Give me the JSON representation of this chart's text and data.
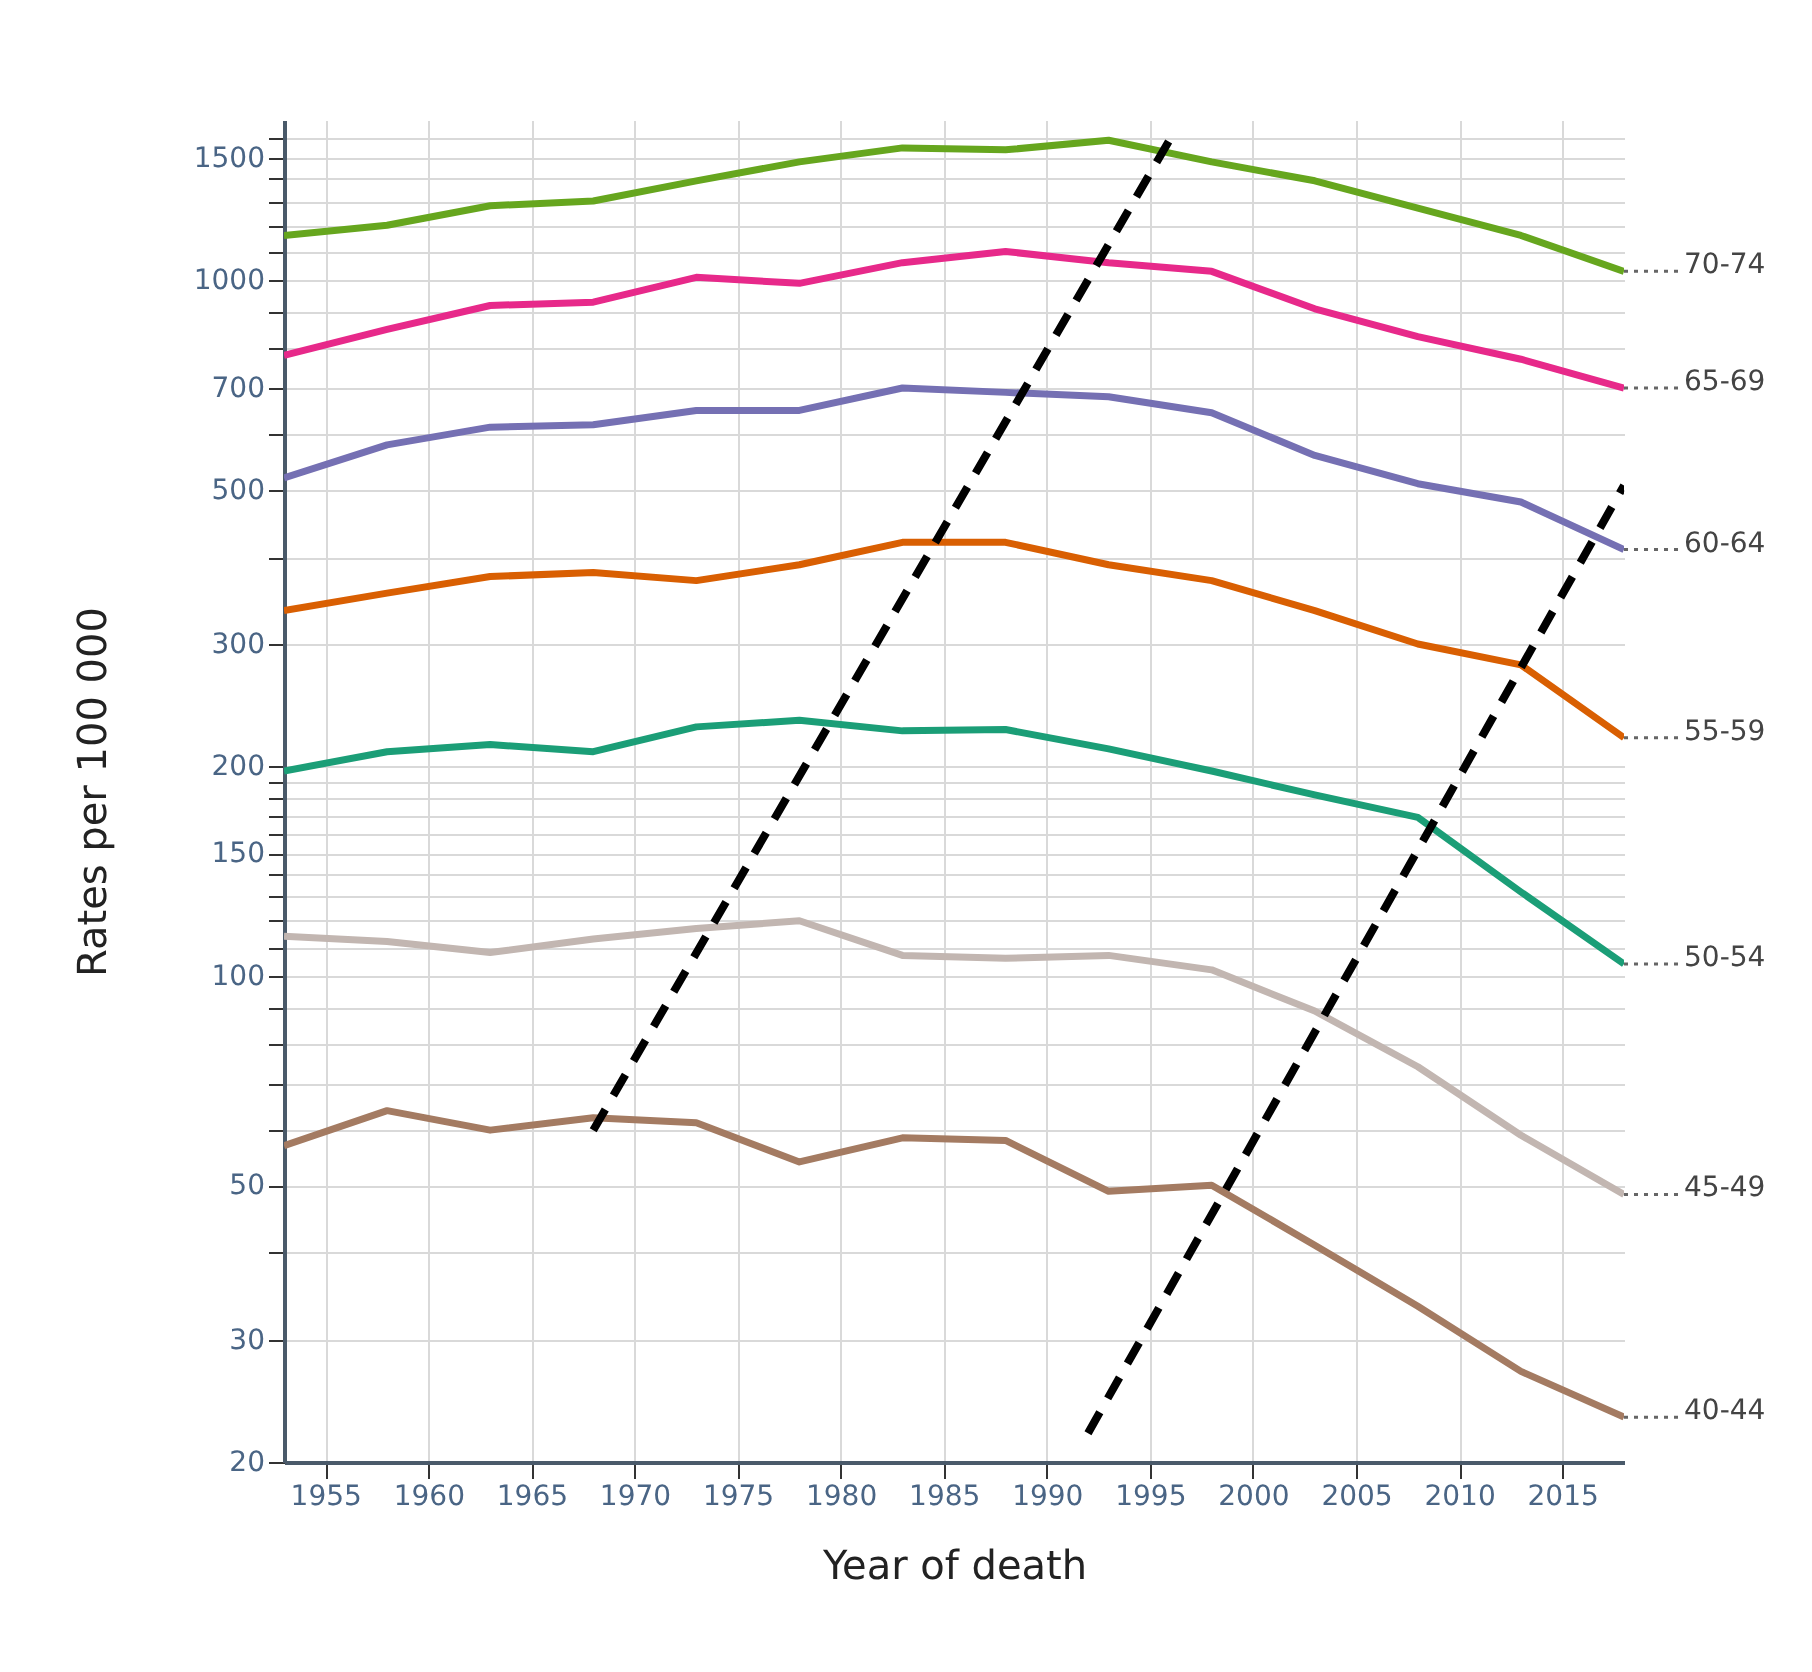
{
  "chart_data": {
    "type": "line",
    "xlabel": "Year of death",
    "ylabel": "Rates per 100 000",
    "log": "y",
    "grid": true,
    "x": [
      1953,
      1958,
      1963,
      1968,
      1973,
      1978,
      1983,
      1988,
      1993,
      1998,
      2003,
      2008,
      2013,
      2018
    ],
    "xlim": [
      1953,
      2018
    ],
    "xticks": [
      1955,
      1960,
      1965,
      1970,
      1975,
      1980,
      1985,
      1990,
      1995,
      2000,
      2005,
      2010,
      2015
    ],
    "ylim": [
      20,
      1700
    ],
    "yticks": [
      20,
      30,
      {
        "value": 40,
        "label": null
      },
      50,
      {
        "value": 60,
        "label": null
      },
      {
        "value": 70,
        "label": null
      },
      {
        "value": 80,
        "label": null
      },
      {
        "value": 90,
        "label": null
      },
      100,
      {
        "value": 110,
        "label": null
      },
      {
        "value": 120,
        "label": null
      },
      {
        "value": 130,
        "label": null
      },
      {
        "value": 140,
        "label": null
      },
      150,
      {
        "value": 160,
        "label": null
      },
      {
        "value": 170,
        "label": null
      },
      {
        "value": 180,
        "label": null
      },
      {
        "value": 190,
        "label": null
      },
      200,
      300,
      {
        "value": 400,
        "label": null
      },
      500,
      {
        "value": 600,
        "label": null
      },
      700,
      {
        "value": 800,
        "label": null
      },
      {
        "value": 900,
        "label": null
      },
      1000,
      {
        "value": 1100,
        "label": null
      },
      {
        "value": 1200,
        "label": null
      },
      {
        "value": 1300,
        "label": null
      },
      {
        "value": 1400,
        "label": null
      },
      1500,
      {
        "value": 1600,
        "label": null
      }
    ],
    "series": [
      {
        "name": "70-74",
        "color": "#66a61e",
        "values": [
          1160,
          1200,
          1280,
          1300,
          1390,
          1480,
          1550,
          1540,
          1590,
          1480,
          1390,
          1270,
          1160,
          1030
        ]
      },
      {
        "name": "65-69",
        "color": "#e7298a",
        "values": [
          780,
          850,
          920,
          930,
          1010,
          990,
          1060,
          1100,
          1060,
          1030,
          910,
          830,
          770,
          700
        ]
      },
      {
        "name": "60-64",
        "color": "#7570b3",
        "values": [
          520,
          580,
          615,
          620,
          650,
          650,
          700,
          690,
          680,
          645,
          560,
          510,
          480,
          410
        ]
      },
      {
        "name": "55-59",
        "color": "#d95f02",
        "values": [
          335,
          355,
          375,
          380,
          370,
          390,
          420,
          420,
          390,
          370,
          335,
          300,
          280,
          220
        ]
      },
      {
        "name": "50-54",
        "color": "#1b9e77",
        "values": [
          197,
          210,
          215,
          210,
          228,
          233,
          225,
          226,
          212,
          197,
          182,
          169,
          132,
          104
        ]
      },
      {
        "name": "45-49",
        "color": "#c2b6b1",
        "values": [
          114,
          112,
          108,
          113,
          117,
          120,
          107,
          106,
          107,
          102,
          89,
          74,
          59,
          48.5
        ]
      },
      {
        "name": "40-44",
        "color": "#a47b62",
        "values": [
          57,
          64,
          60,
          62.5,
          61.5,
          54,
          58.5,
          58,
          49,
          50,
          41,
          33.5,
          27,
          23.2
        ]
      },
      {
        "type": "line",
        "color": "#000000",
        "line_style": "dashed",
        "x": [
          1968,
          1996
        ],
        "values": [
          60,
          1600
        ]
      },
      {
        "type": "line",
        "color": "#000000",
        "line_style": "dashed",
        "x": [
          1992,
          2018
        ],
        "values": [
          22,
          507
        ]
      }
    ]
  }
}
